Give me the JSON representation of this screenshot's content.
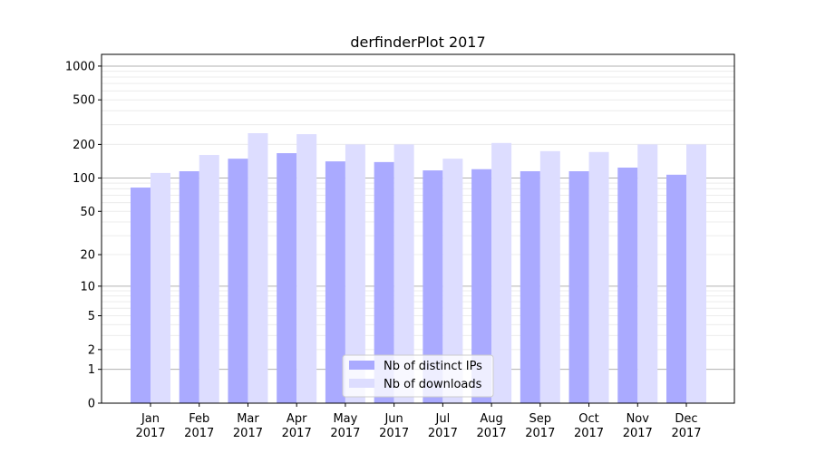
{
  "chart_data": {
    "type": "bar",
    "title": "derfinderPlot 2017",
    "xlabel": "",
    "ylabel": "",
    "y_scale": "symlog",
    "ylim": [
      0,
      1300
    ],
    "yticks": [
      0,
      1,
      2,
      5,
      10,
      20,
      50,
      100,
      200,
      500,
      1000
    ],
    "grid": true,
    "legend_position": "lower center",
    "categories": [
      "Jan\n2017",
      "Feb\n2017",
      "Mar\n2017",
      "Apr\n2017",
      "May\n2017",
      "Jun\n2017",
      "Jul\n2017",
      "Aug\n2017",
      "Sep\n2017",
      "Oct\n2017",
      "Nov\n2017",
      "Dec\n2017"
    ],
    "series": [
      {
        "name": "Nb of distinct IPs",
        "color": "#aaaaff",
        "values": [
          82,
          115,
          149,
          167,
          141,
          139,
          117,
          120,
          115,
          115,
          124,
          107
        ]
      },
      {
        "name": "Nb of downloads",
        "color": "#ddddff",
        "values": [
          111,
          161,
          252,
          247,
          200,
          200,
          149,
          206,
          174,
          171,
          200,
          200
        ]
      }
    ]
  }
}
